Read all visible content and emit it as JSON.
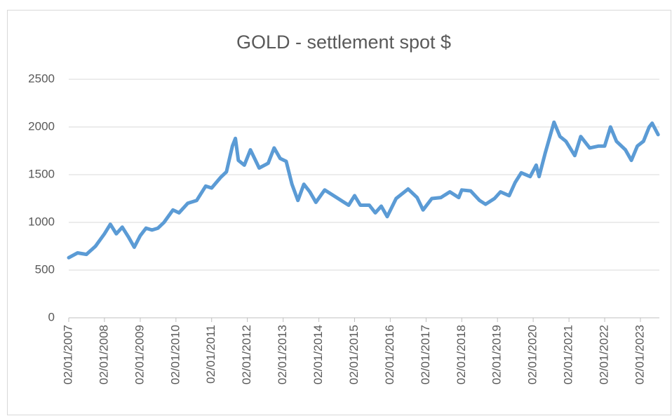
{
  "chart_data": {
    "type": "line",
    "title": "GOLD - settlement spot $",
    "x": [
      "02/01/2007",
      "02/04/2007",
      "02/07/2007",
      "02/10/2007",
      "02/01/2008",
      "02/03/2008",
      "02/05/2008",
      "02/07/2008",
      "02/09/2008",
      "02/11/2008",
      "02/01/2009",
      "02/03/2009",
      "02/05/2009",
      "02/07/2009",
      "02/09/2009",
      "02/12/2009",
      "02/02/2010",
      "02/05/2010",
      "02/08/2010",
      "02/11/2010",
      "02/01/2011",
      "02/04/2011",
      "02/06/2011",
      "02/08/2011",
      "02/09/2011",
      "02/10/2011",
      "02/12/2011",
      "02/02/2012",
      "02/05/2012",
      "02/08/2012",
      "02/10/2012",
      "02/12/2012",
      "02/02/2013",
      "02/04/2013",
      "02/06/2013",
      "02/08/2013",
      "02/10/2013",
      "02/12/2013",
      "02/03/2014",
      "02/06/2014",
      "02/09/2014",
      "02/11/2014",
      "02/01/2015",
      "02/03/2015",
      "02/06/2015",
      "02/08/2015",
      "02/10/2015",
      "02/12/2015",
      "02/03/2016",
      "02/07/2016",
      "02/10/2016",
      "02/12/2016",
      "02/03/2017",
      "02/06/2017",
      "02/09/2017",
      "02/12/2017",
      "02/01/2018",
      "02/04/2018",
      "02/07/2018",
      "02/09/2018",
      "02/12/2018",
      "02/02/2019",
      "02/05/2019",
      "02/07/2019",
      "02/09/2019",
      "02/12/2019",
      "02/02/2020",
      "02/03/2020",
      "02/05/2020",
      "02/08/2020",
      "02/10/2020",
      "02/12/2020",
      "02/03/2021",
      "02/05/2021",
      "02/08/2021",
      "02/11/2021",
      "02/01/2022",
      "02/03/2022",
      "02/05/2022",
      "02/08/2022",
      "02/10/2022",
      "02/12/2022",
      "02/02/2023",
      "02/04/2023",
      "02/05/2023",
      "02/07/2023"
    ],
    "series": [
      {
        "name": "GOLD - settlement spot $",
        "color": "#5b9bd5",
        "values": [
          630,
          680,
          665,
          750,
          880,
          980,
          880,
          950,
          850,
          740,
          860,
          940,
          920,
          940,
          1000,
          1130,
          1100,
          1200,
          1230,
          1380,
          1360,
          1470,
          1530,
          1800,
          1880,
          1650,
          1600,
          1760,
          1570,
          1620,
          1780,
          1670,
          1640,
          1400,
          1230,
          1400,
          1320,
          1210,
          1340,
          1280,
          1220,
          1180,
          1280,
          1180,
          1180,
          1100,
          1170,
          1060,
          1250,
          1350,
          1260,
          1130,
          1250,
          1260,
          1320,
          1260,
          1340,
          1330,
          1230,
          1190,
          1250,
          1320,
          1280,
          1420,
          1520,
          1480,
          1600,
          1480,
          1720,
          2050,
          1900,
          1850,
          1700,
          1900,
          1780,
          1800,
          1800,
          2000,
          1850,
          1760,
          1650,
          1800,
          1850,
          2000,
          2040,
          1920
        ]
      }
    ],
    "xlim": [
      "02/01/2007",
      "15/07/2023"
    ],
    "xticks": [
      "02/01/2007",
      "02/01/2008",
      "02/01/2009",
      "02/01/2010",
      "02/01/2011",
      "02/01/2012",
      "02/01/2013",
      "02/01/2014",
      "02/01/2015",
      "02/01/2016",
      "02/01/2017",
      "02/01/2018",
      "02/01/2019",
      "02/01/2020",
      "02/01/2021",
      "02/01/2022",
      "02/01/2023"
    ],
    "ylim": [
      0,
      2500
    ],
    "yticks": [
      0,
      500,
      1000,
      1500,
      2000,
      2500
    ],
    "grid": true
  }
}
